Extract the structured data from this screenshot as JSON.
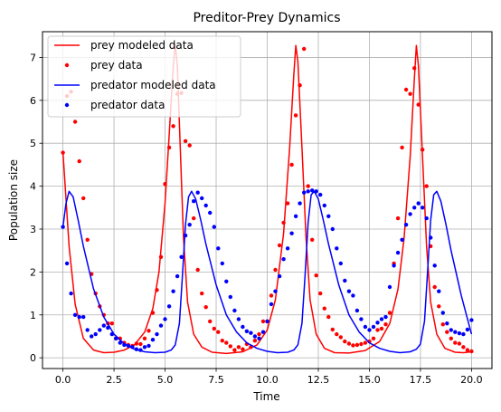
{
  "chart_data": {
    "type": "line",
    "title": "Preditor-Prey Dynamics",
    "xlabel": "Time",
    "ylabel": "Population size",
    "xlim": [
      -1.0,
      21.0
    ],
    "ylim": [
      -0.25,
      7.6
    ],
    "grid": true,
    "legend_position": "top-left",
    "xticks": [
      0.0,
      2.5,
      5.0,
      7.5,
      10.0,
      12.5,
      15.0,
      17.5,
      20.0
    ],
    "xtick_labels": [
      "0.0",
      "2.5",
      "5.0",
      "7.5",
      "10.0",
      "12.5",
      "15.0",
      "17.5",
      "20.0"
    ],
    "yticks": [
      0,
      1,
      2,
      3,
      4,
      5,
      6,
      7
    ],
    "ytick_labels": [
      "0",
      "1",
      "2",
      "3",
      "4",
      "5",
      "6",
      "7"
    ],
    "series": [
      {
        "name": "prey modeled data",
        "kind": "line",
        "color": "#ff0000",
        "x": [
          0.0,
          0.3,
          0.6,
          1.0,
          1.5,
          2.0,
          2.5,
          3.0,
          3.5,
          4.0,
          4.4,
          4.7,
          5.0,
          5.2,
          5.4,
          5.5,
          5.6,
          5.75,
          5.9,
          6.1,
          6.4,
          6.8,
          7.3,
          8.0,
          8.8,
          9.5,
          10.0,
          10.4,
          10.8,
          11.1,
          11.3,
          11.4,
          11.5,
          11.7,
          11.9,
          12.1,
          12.4,
          12.8,
          13.3,
          14.0,
          14.8,
          15.5,
          16.0,
          16.4,
          16.7,
          17.0,
          17.2,
          17.3,
          17.4,
          17.6,
          17.8,
          18.0,
          18.3,
          18.7,
          19.2,
          19.6,
          20.0
        ],
        "y": [
          4.8,
          2.6,
          1.25,
          0.45,
          0.18,
          0.12,
          0.13,
          0.18,
          0.3,
          0.6,
          1.15,
          2.0,
          3.6,
          5.2,
          6.8,
          7.3,
          6.8,
          4.8,
          2.8,
          1.3,
          0.55,
          0.25,
          0.13,
          0.1,
          0.14,
          0.3,
          0.65,
          1.35,
          2.9,
          4.9,
          6.6,
          7.28,
          6.9,
          4.9,
          2.8,
          1.35,
          0.55,
          0.22,
          0.12,
          0.11,
          0.17,
          0.38,
          0.8,
          1.6,
          2.8,
          4.7,
          6.5,
          7.28,
          6.8,
          4.7,
          2.6,
          1.3,
          0.55,
          0.22,
          0.13,
          0.12,
          0.14
        ]
      },
      {
        "name": "prey data",
        "kind": "scatter",
        "color": "#ff0000",
        "x": [
          0.0,
          0.2,
          0.4,
          0.6,
          0.8,
          1.0,
          1.2,
          1.4,
          1.6,
          1.8,
          2.0,
          2.2,
          2.4,
          2.6,
          2.8,
          3.0,
          3.2,
          3.4,
          3.6,
          3.8,
          4.0,
          4.2,
          4.4,
          4.6,
          4.8,
          5.0,
          5.2,
          5.4,
          5.6,
          5.8,
          6.0,
          6.2,
          6.4,
          6.6,
          6.8,
          7.0,
          7.2,
          7.4,
          7.6,
          7.8,
          8.0,
          8.2,
          8.4,
          8.6,
          8.8,
          9.0,
          9.2,
          9.4,
          9.6,
          9.8,
          10.0,
          10.2,
          10.4,
          10.6,
          10.8,
          11.0,
          11.2,
          11.4,
          11.6,
          11.8,
          12.0,
          12.2,
          12.4,
          12.6,
          12.8,
          13.0,
          13.2,
          13.4,
          13.6,
          13.8,
          14.0,
          14.2,
          14.4,
          14.6,
          14.8,
          15.0,
          15.2,
          15.4,
          15.6,
          15.8,
          16.0,
          16.2,
          16.4,
          16.6,
          16.8,
          17.0,
          17.2,
          17.4,
          17.6,
          17.8,
          18.0,
          18.2,
          18.4,
          18.6,
          18.8,
          19.0,
          19.2,
          19.4,
          19.6,
          19.8,
          20.0
        ],
        "y": [
          4.78,
          6.1,
          6.2,
          5.5,
          4.58,
          3.72,
          2.75,
          1.95,
          1.5,
          1.2,
          1.0,
          0.8,
          0.8,
          0.45,
          0.45,
          0.35,
          0.3,
          0.28,
          0.33,
          0.32,
          0.45,
          0.63,
          1.05,
          1.58,
          2.35,
          4.05,
          4.9,
          5.4,
          6.15,
          6.17,
          5.05,
          4.95,
          3.25,
          2.05,
          1.5,
          1.18,
          0.85,
          0.68,
          0.6,
          0.4,
          0.35,
          0.27,
          0.18,
          0.25,
          0.2,
          0.32,
          0.25,
          0.4,
          0.55,
          0.85,
          0.85,
          1.45,
          2.05,
          2.62,
          3.15,
          3.6,
          4.5,
          5.65,
          6.35,
          7.2,
          4.0,
          2.75,
          1.92,
          1.5,
          1.15,
          0.95,
          0.66,
          0.55,
          0.48,
          0.38,
          0.33,
          0.29,
          0.3,
          0.32,
          0.35,
          0.38,
          0.45,
          0.65,
          0.68,
          0.78,
          1.05,
          2.2,
          3.25,
          4.9,
          6.25,
          6.15,
          6.75,
          5.9,
          4.85,
          4.0,
          2.6,
          1.65,
          1.2,
          0.78,
          0.6,
          0.45,
          0.35,
          0.33,
          0.25,
          0.18,
          0.15
        ]
      },
      {
        "name": "predator modeled data",
        "kind": "line",
        "color": "#0000ff",
        "x": [
          0.0,
          0.15,
          0.3,
          0.5,
          0.75,
          1.0,
          1.5,
          2.0,
          2.5,
          3.0,
          3.5,
          4.0,
          4.5,
          5.0,
          5.3,
          5.5,
          5.7,
          5.85,
          6.0,
          6.15,
          6.3,
          6.5,
          6.75,
          7.0,
          7.5,
          8.0,
          8.5,
          9.0,
          9.5,
          10.0,
          10.5,
          11.0,
          11.3,
          11.5,
          11.7,
          11.85,
          12.0,
          12.15,
          12.3,
          12.5,
          12.75,
          13.0,
          13.5,
          14.0,
          14.5,
          15.0,
          15.5,
          16.0,
          16.5,
          17.0,
          17.3,
          17.5,
          17.7,
          17.85,
          18.0,
          18.15,
          18.3,
          18.5,
          18.75,
          19.0,
          19.5,
          20.0
        ],
        "y": [
          3.05,
          3.6,
          3.88,
          3.75,
          3.2,
          2.6,
          1.6,
          0.95,
          0.55,
          0.33,
          0.2,
          0.14,
          0.12,
          0.13,
          0.18,
          0.3,
          0.8,
          1.9,
          3.1,
          3.75,
          3.88,
          3.7,
          3.2,
          2.65,
          1.7,
          1.0,
          0.6,
          0.35,
          0.22,
          0.15,
          0.12,
          0.13,
          0.18,
          0.3,
          0.8,
          1.9,
          3.15,
          3.8,
          3.88,
          3.7,
          3.2,
          2.65,
          1.7,
          1.0,
          0.6,
          0.35,
          0.22,
          0.15,
          0.12,
          0.14,
          0.2,
          0.32,
          0.85,
          2.0,
          3.2,
          3.8,
          3.88,
          3.65,
          3.1,
          2.5,
          1.45,
          0.55
        ]
      },
      {
        "name": "predator data",
        "kind": "scatter",
        "color": "#0000ff",
        "x": [
          0.0,
          0.2,
          0.4,
          0.6,
          0.8,
          1.0,
          1.2,
          1.4,
          1.6,
          1.8,
          2.0,
          2.2,
          2.4,
          2.6,
          2.8,
          3.0,
          3.2,
          3.4,
          3.6,
          3.8,
          4.0,
          4.2,
          4.4,
          4.6,
          4.8,
          5.0,
          5.2,
          5.4,
          5.6,
          5.8,
          6.0,
          6.2,
          6.4,
          6.6,
          6.8,
          7.0,
          7.2,
          7.4,
          7.6,
          7.8,
          8.0,
          8.2,
          8.4,
          8.6,
          8.8,
          9.0,
          9.2,
          9.4,
          9.6,
          9.8,
          10.0,
          10.2,
          10.4,
          10.6,
          10.8,
          11.0,
          11.2,
          11.4,
          11.6,
          11.8,
          12.0,
          12.2,
          12.4,
          12.6,
          12.8,
          13.0,
          13.2,
          13.4,
          13.6,
          13.8,
          14.0,
          14.2,
          14.4,
          14.6,
          14.8,
          15.0,
          15.2,
          15.4,
          15.6,
          15.8,
          16.0,
          16.2,
          16.4,
          16.6,
          16.8,
          17.0,
          17.2,
          17.4,
          17.6,
          17.8,
          18.0,
          18.2,
          18.4,
          18.6,
          18.8,
          19.0,
          19.2,
          19.4,
          19.6,
          19.8,
          20.0
        ],
        "y": [
          3.05,
          2.2,
          1.5,
          1.0,
          0.95,
          0.95,
          0.65,
          0.5,
          0.55,
          0.65,
          0.75,
          0.7,
          0.55,
          0.45,
          0.35,
          0.3,
          0.28,
          0.25,
          0.2,
          0.18,
          0.25,
          0.28,
          0.42,
          0.55,
          0.75,
          0.9,
          1.2,
          1.55,
          1.9,
          2.35,
          2.85,
          3.1,
          3.65,
          3.85,
          3.72,
          3.55,
          3.38,
          3.05,
          2.55,
          2.2,
          1.78,
          1.42,
          1.1,
          0.9,
          0.72,
          0.62,
          0.58,
          0.5,
          0.45,
          0.6,
          0.85,
          1.25,
          1.55,
          1.9,
          2.3,
          2.55,
          2.9,
          3.3,
          3.6,
          3.85,
          3.88,
          3.9,
          3.88,
          3.8,
          3.55,
          3.3,
          3.0,
          2.55,
          2.2,
          1.8,
          1.55,
          1.45,
          1.1,
          0.9,
          0.72,
          0.65,
          0.72,
          0.82,
          0.9,
          0.95,
          1.65,
          2.15,
          2.45,
          2.75,
          3.1,
          3.35,
          3.5,
          3.6,
          3.5,
          3.25,
          2.8,
          2.15,
          1.55,
          1.05,
          0.8,
          0.65,
          0.6,
          0.57,
          0.55,
          0.66,
          0.88
        ]
      }
    ]
  }
}
